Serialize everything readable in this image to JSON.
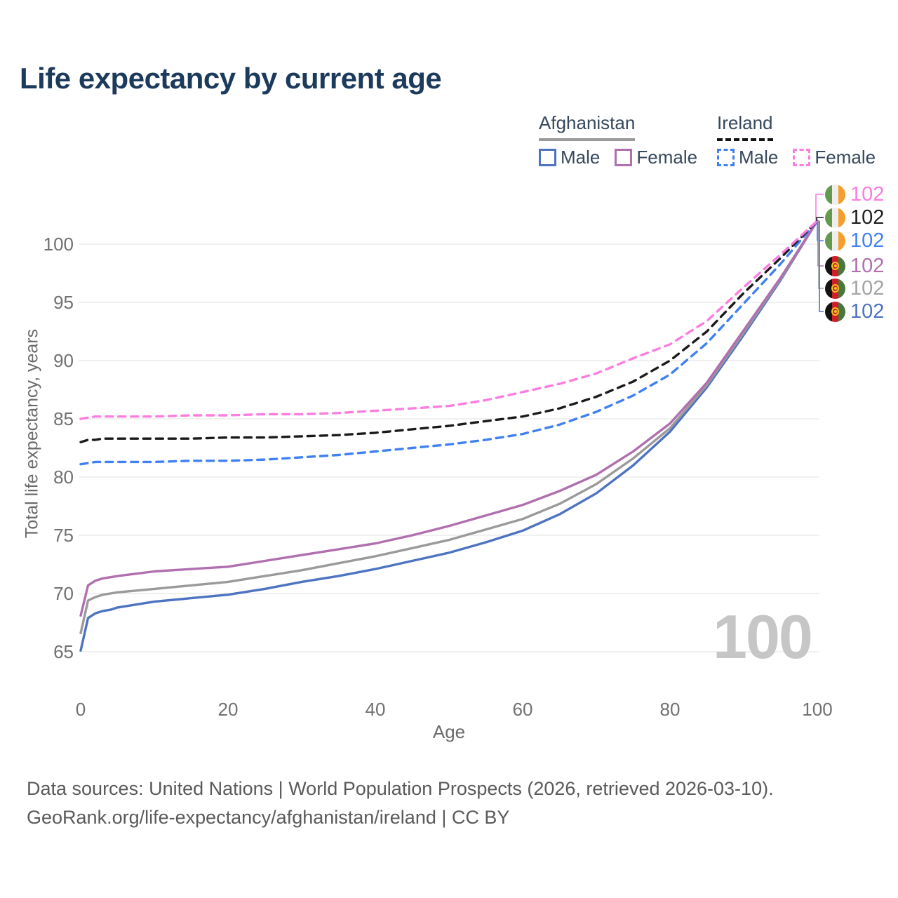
{
  "title": "Life expectancy by current age",
  "watermark": "100",
  "legend": {
    "groups": [
      {
        "country": "Afghanistan",
        "line_style": "solid",
        "underline_color": "#9b9b9b",
        "items": [
          {
            "label": "Male",
            "color": "#4d73c1",
            "dashed": false
          },
          {
            "label": "Female",
            "color": "#b06fae",
            "dashed": false
          }
        ]
      },
      {
        "country": "Ireland",
        "line_style": "dashed",
        "underline_color": "#151515",
        "items": [
          {
            "label": "Male",
            "color": "#4080f0",
            "dashed": true
          },
          {
            "label": "Female",
            "color": "#fb7de0",
            "dashed": true
          }
        ]
      }
    ]
  },
  "axes": {
    "x": {
      "label": "Age",
      "ticks": [
        0,
        20,
        40,
        60,
        80,
        100
      ],
      "min": 0,
      "max": 100
    },
    "y": {
      "label": "Total life expectancy, years",
      "ticks": [
        65,
        70,
        75,
        80,
        85,
        90,
        95,
        100
      ],
      "min": 65,
      "max": 102
    }
  },
  "chart_data": {
    "type": "line",
    "title": "Life expectancy by current age",
    "xlabel": "Age",
    "ylabel": "Total life expectancy, years",
    "xlim": [
      0,
      100
    ],
    "ylim": [
      65,
      102
    ],
    "grid": "horizontal",
    "legend_position": "top-right",
    "x": [
      0,
      1,
      2,
      3,
      4,
      5,
      10,
      15,
      20,
      25,
      30,
      35,
      40,
      45,
      50,
      55,
      60,
      65,
      70,
      75,
      80,
      85,
      90,
      95,
      100
    ],
    "series": [
      {
        "name": "Afghanistan Male",
        "country": "Afghanistan",
        "sex": "Male",
        "color": "#4d73c1",
        "dashed": false,
        "values": [
          65.1,
          67.9,
          68.3,
          68.5,
          68.6,
          68.8,
          69.3,
          69.6,
          69.9,
          70.4,
          71.0,
          71.5,
          72.1,
          72.8,
          73.5,
          74.4,
          75.4,
          76.8,
          78.6,
          81.0,
          83.9,
          87.7,
          92.2,
          96.9,
          102
        ]
      },
      {
        "name": "Afghanistan",
        "country": "Afghanistan",
        "sex": "Both",
        "color": "#9a9a9a",
        "dashed": false,
        "values": [
          66.6,
          69.4,
          69.7,
          69.9,
          70.0,
          70.1,
          70.4,
          70.7,
          71.0,
          71.5,
          72.0,
          72.6,
          73.2,
          73.9,
          74.6,
          75.5,
          76.4,
          77.7,
          79.4,
          81.6,
          84.2,
          87.9,
          92.4,
          97.0,
          102
        ]
      },
      {
        "name": "Afghanistan Female",
        "country": "Afghanistan",
        "sex": "Female",
        "color": "#b06fae",
        "dashed": false,
        "values": [
          68.1,
          70.7,
          71.1,
          71.3,
          71.4,
          71.5,
          71.9,
          72.1,
          72.3,
          72.8,
          73.3,
          73.8,
          74.3,
          75.0,
          75.8,
          76.7,
          77.6,
          78.8,
          80.2,
          82.2,
          84.6,
          88.1,
          92.6,
          97.1,
          102
        ]
      },
      {
        "name": "Ireland Male",
        "country": "Ireland",
        "sex": "Male",
        "color": "#4080f0",
        "dashed": true,
        "values": [
          81.1,
          81.2,
          81.3,
          81.3,
          81.3,
          81.3,
          81.3,
          81.4,
          81.4,
          81.5,
          81.7,
          81.9,
          82.2,
          82.5,
          82.8,
          83.2,
          83.7,
          84.5,
          85.6,
          87.0,
          88.8,
          91.5,
          94.9,
          98.3,
          102
        ]
      },
      {
        "name": "Ireland",
        "country": "Ireland",
        "sex": "Both",
        "color": "#1a1a1a",
        "dashed": true,
        "values": [
          83.0,
          83.2,
          83.2,
          83.3,
          83.3,
          83.3,
          83.3,
          83.3,
          83.4,
          83.4,
          83.5,
          83.6,
          83.8,
          84.1,
          84.4,
          84.8,
          85.2,
          85.9,
          86.9,
          88.2,
          90.0,
          92.5,
          95.8,
          98.8,
          102
        ]
      },
      {
        "name": "Ireland Female",
        "country": "Ireland",
        "sex": "Female",
        "color": "#fb7de0",
        "dashed": true,
        "values": [
          85.0,
          85.1,
          85.2,
          85.2,
          85.2,
          85.2,
          85.2,
          85.3,
          85.3,
          85.4,
          85.4,
          85.5,
          85.7,
          85.9,
          86.1,
          86.6,
          87.3,
          88.0,
          88.9,
          90.2,
          91.4,
          93.4,
          96.3,
          99.1,
          102
        ]
      }
    ]
  },
  "end_labels": [
    {
      "series": "Ireland Female",
      "flag": "ireland",
      "value": "102",
      "color": "#fb7de0"
    },
    {
      "series": "Ireland",
      "flag": "ireland",
      "value": "102",
      "color": "#1f1f1f"
    },
    {
      "series": "Ireland Male",
      "flag": "ireland",
      "value": "102",
      "color": "#4080f0"
    },
    {
      "series": "Afghanistan Female",
      "flag": "afghanistan",
      "value": "102",
      "color": "#b06fae"
    },
    {
      "series": "Afghanistan",
      "flag": "afghanistan",
      "value": "102",
      "color": "#a3a3a3"
    },
    {
      "series": "Afghanistan Male",
      "flag": "afghanistan",
      "value": "102",
      "color": "#4d73c1"
    }
  ],
  "footer": {
    "line1": "Data sources: United Nations | World Population Prospects (2026, retrieved 2026-03-10).",
    "line2": "GeoRank.org/life-expectancy/afghanistan/ireland | CC BY"
  }
}
